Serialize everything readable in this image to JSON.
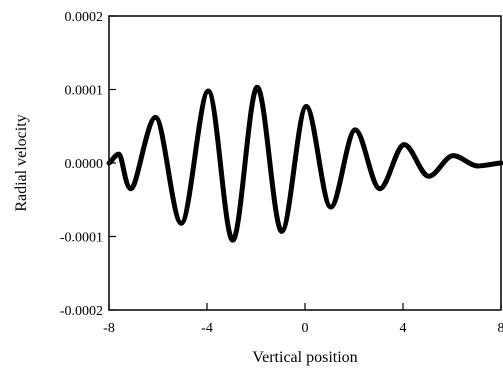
{
  "chart_data": {
    "type": "line",
    "title": "",
    "xlabel": "Vertical position",
    "ylabel": "Radial velocity",
    "xlim": [
      -8,
      8
    ],
    "ylim": [
      -0.0002,
      0.0002
    ],
    "x_ticks": [
      -8,
      -4,
      0,
      4,
      8
    ],
    "x_tick_labels": [
      "-8",
      "-4",
      "0",
      "4",
      "8"
    ],
    "y_ticks": [
      -0.0002,
      -0.0001,
      0.0,
      0.0001,
      0.0002
    ],
    "y_tick_labels": [
      "-0.0002",
      "-0.0001",
      "0.0000",
      "0.0001",
      "0.0002"
    ],
    "grid": false,
    "legend": "none",
    "series": [
      {
        "color": "#000000",
        "x": [
          -8.0,
          -7.6,
          -7.1,
          -6.1,
          -5.05,
          -3.95,
          -2.95,
          -1.95,
          -0.95,
          0.05,
          1.05,
          2.05,
          3.05,
          4.05,
          5.05,
          6.05,
          7.05,
          8.0
        ],
        "y": [
          0.0,
          1.2e-05,
          -3.5e-05,
          6.2e-05,
          -8.2e-05,
          9.8e-05,
          -0.000105,
          0.000103,
          -9.3e-05,
          7.7e-05,
          -6e-05,
          4.5e-05,
          -3.5e-05,
          2.5e-05,
          -1.8e-05,
          1e-05,
          -4e-06,
          0.0
        ]
      }
    ]
  }
}
